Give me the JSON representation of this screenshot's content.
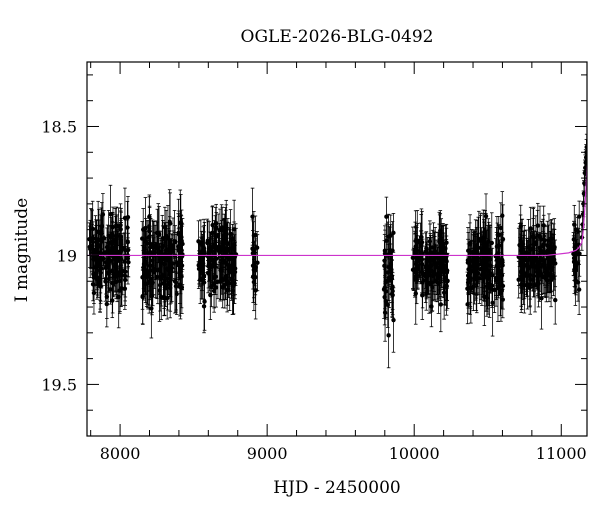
{
  "chart_data": {
    "type": "scatter",
    "title": "OGLE-2026-BLG-0492",
    "xlabel": "HJD - 2450000",
    "ylabel": "I magnitude",
    "xlim": [
      7775,
      11175
    ],
    "ylim": [
      19.7,
      18.25
    ],
    "y_inverted": true,
    "x_ticks": [
      8000,
      9000,
      10000,
      11000
    ],
    "x_tick_labels": [
      "8000",
      "9000",
      "10000",
      "11000"
    ],
    "y_ticks": [
      18.5,
      19,
      19.5
    ],
    "y_tick_labels": [
      "18.5",
      "19",
      "19.5"
    ],
    "baseline_mag": 19.0,
    "colors": {
      "points": "#000000",
      "model": "#cc33cc",
      "axes": "#000000"
    },
    "series": [
      {
        "kind": "observations",
        "seasons": [
          {
            "x_start": 7790,
            "x_end": 8060,
            "mean_mag": 19.01,
            "scatter": 0.07,
            "errorbar": 0.08
          },
          {
            "x_start": 8150,
            "x_end": 8430,
            "mean_mag": 19.02,
            "scatter": 0.07,
            "errorbar": 0.09
          },
          {
            "x_start": 8525,
            "x_end": 8790,
            "mean_mag": 19.01,
            "scatter": 0.07,
            "errorbar": 0.08
          },
          {
            "x_start": 8900,
            "x_end": 8935,
            "mean_mag": 19.02,
            "scatter": 0.08,
            "errorbar": 0.08
          },
          {
            "x_start": 9790,
            "x_end": 9860,
            "mean_mag": 19.06,
            "scatter": 0.1,
            "errorbar": 0.09
          },
          {
            "x_start": 9990,
            "x_end": 10230,
            "mean_mag": 19.03,
            "scatter": 0.06,
            "errorbar": 0.08
          },
          {
            "x_start": 10360,
            "x_end": 10610,
            "mean_mag": 19.04,
            "scatter": 0.07,
            "errorbar": 0.09
          },
          {
            "x_start": 10710,
            "x_end": 10960,
            "mean_mag": 19.03,
            "scatter": 0.06,
            "errorbar": 0.08
          },
          {
            "x_start": 11080,
            "x_end": 11125,
            "mean_mag": 19.0,
            "scatter": 0.06,
            "errorbar": 0.07
          }
        ],
        "rising_points": [
          {
            "x": 11140,
            "y": 18.93
          },
          {
            "x": 11145,
            "y": 18.88
          },
          {
            "x": 11148,
            "y": 18.84
          },
          {
            "x": 11151,
            "y": 18.8
          },
          {
            "x": 11154,
            "y": 18.76
          },
          {
            "x": 11157,
            "y": 18.72
          },
          {
            "x": 11160,
            "y": 18.68
          },
          {
            "x": 11163,
            "y": 18.66
          },
          {
            "x": 11166,
            "y": 18.64
          },
          {
            "x": 11169,
            "y": 18.62
          },
          {
            "x": 11171,
            "y": 18.6
          },
          {
            "x": 11173,
            "y": 18.58
          }
        ]
      },
      {
        "kind": "model",
        "x": [
          7775,
          10900,
          11050,
          11100,
          11120,
          11140,
          11150,
          11160,
          11170,
          11175
        ],
        "y": [
          19.0,
          19.0,
          18.99,
          18.98,
          18.97,
          18.95,
          18.9,
          18.82,
          18.72,
          18.65
        ]
      }
    ]
  }
}
